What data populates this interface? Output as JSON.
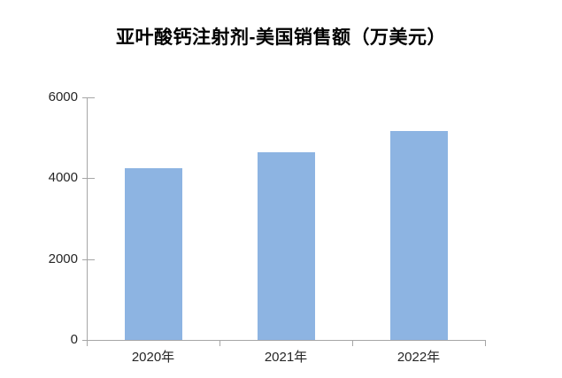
{
  "chart_data": {
    "type": "bar",
    "title": "亚叶酸钙注射剂-美国销售额（万美元）",
    "categories": [
      "2020年",
      "2021年",
      "2022年"
    ],
    "values": [
      4250,
      4640,
      5170
    ],
    "xlabel": "",
    "ylabel": "",
    "ylim": [
      0,
      6000
    ],
    "yticks": [
      0,
      2000,
      4000,
      6000
    ],
    "grid": false,
    "legend": false,
    "colors": {
      "bar_fill": "#8DB4E2",
      "axis_line": "#A6A6A6",
      "tick_label": "#262626",
      "title_text": "#000000"
    }
  }
}
